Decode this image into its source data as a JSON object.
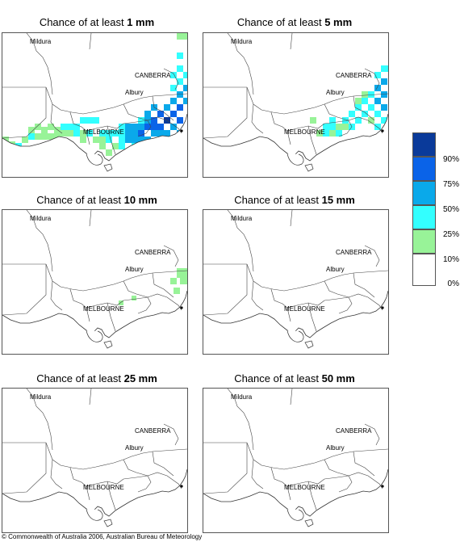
{
  "panels": [
    {
      "title_prefix": "Chance of at least ",
      "amount": "1 mm"
    },
    {
      "title_prefix": "Chance of at least ",
      "amount": "5 mm"
    },
    {
      "title_prefix": "Chance of at least ",
      "amount": "10 mm"
    },
    {
      "title_prefix": "Chance of at least ",
      "amount": "15 mm"
    },
    {
      "title_prefix": "Chance of at least ",
      "amount": "25 mm"
    },
    {
      "title_prefix": "Chance of at least ",
      "amount": "50 mm"
    }
  ],
  "places": {
    "mildura": "Mildura",
    "canberra": "CANBERRA",
    "albury": "Albury",
    "melbourne": "MELBOURNE"
  },
  "legend": {
    "colors": [
      "#0a3a9a",
      "#0a63e8",
      "#0aa9ea",
      "#33ffff",
      "#98f398",
      "#ffffff"
    ],
    "labels": [
      "90%",
      "75%",
      "50%",
      "25%",
      "10%",
      "0%"
    ]
  },
  "copyright": "© Commonwealth of Australia 2006, Australian Bureau of Meteorology"
}
